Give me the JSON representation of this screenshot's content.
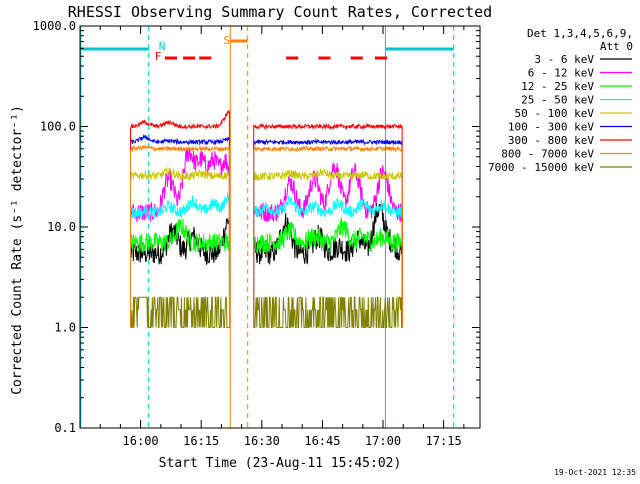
{
  "chart_data": {
    "type": "line",
    "title": "RHESSI Observing Summary Count Rates, Corrected",
    "xlabel": "Start Time (23-Aug-11 15:45:02)",
    "ylabel": "Corrected Count Rate (s⁻¹ detector⁻¹)",
    "y_scale": "log",
    "ylim": [
      0.1,
      1000.0
    ],
    "y_ticks": [
      {
        "value": 0.1,
        "label": "0.1"
      },
      {
        "value": 1.0,
        "label": "1.0"
      },
      {
        "value": 10.0,
        "label": "10.0"
      },
      {
        "value": 100.0,
        "label": "100.0"
      },
      {
        "value": 1000.0,
        "label": "1000.0"
      }
    ],
    "x_unit": "minutes from 15:45",
    "xlim": [
      0.0,
      99.0
    ],
    "x_ticks": [
      {
        "value": 15,
        "label": "16:00"
      },
      {
        "value": 30,
        "label": "16:15"
      },
      {
        "value": 45,
        "label": "16:30"
      },
      {
        "value": 60,
        "label": "16:45"
      },
      {
        "value": 75,
        "label": "17:00"
      },
      {
        "value": 90,
        "label": "17:15"
      }
    ],
    "legend_header": [
      "Det 1,3,4,5,6,9,",
      "Att 0"
    ],
    "legend_position": "right",
    "timestamp": "19-Oct-2021 12:35",
    "flags": [
      {
        "label": "N",
        "color": "#00c8c8"
      },
      {
        "label": "F",
        "color": "#ff0000"
      },
      {
        "label": "S",
        "color": "#ff8000"
      }
    ],
    "series": [
      {
        "name": "3 - 6 keV",
        "color": "#000000",
        "base": 5.5,
        "peaks": [
          [
            23,
            9
          ],
          [
            28,
            8
          ],
          [
            37,
            12
          ],
          [
            41,
            9
          ],
          [
            51,
            11
          ],
          [
            59,
            8
          ],
          [
            64,
            6.5
          ],
          [
            69,
            7.5
          ],
          [
            74,
            15
          ],
          [
            77,
            7
          ],
          [
            79,
            3
          ]
        ],
        "noise": 0.12
      },
      {
        "name": "6 - 12 keV",
        "color": "#ff00ff",
        "base": 14.0,
        "peaks": [
          [
            22,
            30
          ],
          [
            27,
            55
          ],
          [
            30,
            45
          ],
          [
            33,
            45
          ],
          [
            36,
            45
          ],
          [
            42,
            16
          ],
          [
            52,
            28
          ],
          [
            58,
            30
          ],
          [
            63,
            40
          ],
          [
            68,
            35
          ],
          [
            75,
            35
          ],
          [
            78,
            12
          ]
        ],
        "noise": 0.1
      },
      {
        "name": "12 - 25 keV",
        "color": "#00ff00",
        "base": 7.0,
        "peaks": [
          [
            22,
            7
          ],
          [
            25,
            10
          ],
          [
            30,
            7
          ],
          [
            36,
            7
          ],
          [
            46,
            7
          ],
          [
            52,
            9
          ],
          [
            58,
            8
          ],
          [
            65,
            10
          ],
          [
            70,
            8
          ],
          [
            75,
            8
          ],
          [
            79,
            6
          ]
        ],
        "noise": 0.1
      },
      {
        "name": "25 - 50 keV",
        "color": "#00ffff",
        "base": 14.0,
        "peaks": [
          [
            22,
            16
          ],
          [
            28,
            18
          ],
          [
            33,
            17
          ],
          [
            37,
            20
          ],
          [
            46,
            16
          ],
          [
            52,
            18
          ],
          [
            58,
            16
          ],
          [
            64,
            17
          ],
          [
            70,
            17
          ],
          [
            75,
            17
          ],
          [
            79,
            14
          ]
        ],
        "noise": 0.06
      },
      {
        "name": "50 - 100 keV",
        "color": "#c8c800",
        "base": 32.0,
        "peaks": [
          [
            16,
            33
          ],
          [
            22,
            36
          ],
          [
            30,
            34
          ],
          [
            37,
            33
          ],
          [
            46,
            32
          ],
          [
            52,
            34
          ],
          [
            60,
            35
          ],
          [
            70,
            33
          ],
          [
            75,
            32
          ],
          [
            79,
            30
          ]
        ],
        "noise": 0.04
      },
      {
        "name": "100 - 300 keV",
        "color": "#0000ff",
        "base": 70.0,
        "peaks": [
          [
            16,
            78
          ],
          [
            22,
            72
          ],
          [
            28,
            65
          ],
          [
            34,
            62
          ],
          [
            37,
            75
          ],
          [
            46,
            58
          ],
          [
            55,
            62
          ],
          [
            62,
            63
          ],
          [
            70,
            63
          ],
          [
            75,
            62
          ],
          [
            79,
            55
          ]
        ],
        "noise": 0.02
      },
      {
        "name": "300 - 800 keV",
        "color": "#ff0000",
        "base": 100.0,
        "peaks": [
          [
            16,
            110
          ],
          [
            22,
            110
          ],
          [
            28,
            100
          ],
          [
            34,
            85
          ],
          [
            37,
            140
          ],
          [
            46,
            78
          ],
          [
            55,
            85
          ],
          [
            65,
            90
          ],
          [
            72,
            88
          ],
          [
            79,
            70
          ]
        ],
        "noise": 0.02
      },
      {
        "name": "800 - 7000 keV",
        "color": "#ff8000",
        "base": 60.0,
        "peaks": [
          [
            16,
            62
          ],
          [
            22,
            58
          ],
          [
            28,
            55
          ],
          [
            34,
            48
          ],
          [
            37,
            55
          ],
          [
            46,
            45
          ],
          [
            55,
            48
          ],
          [
            65,
            50
          ],
          [
            72,
            50
          ],
          [
            79,
            42
          ]
        ],
        "noise": 0.02
      },
      {
        "name": "7000 - 15000 keV",
        "color": "#808000",
        "base": 1.0,
        "peaks": [],
        "noise": 0.0
      }
    ]
  }
}
